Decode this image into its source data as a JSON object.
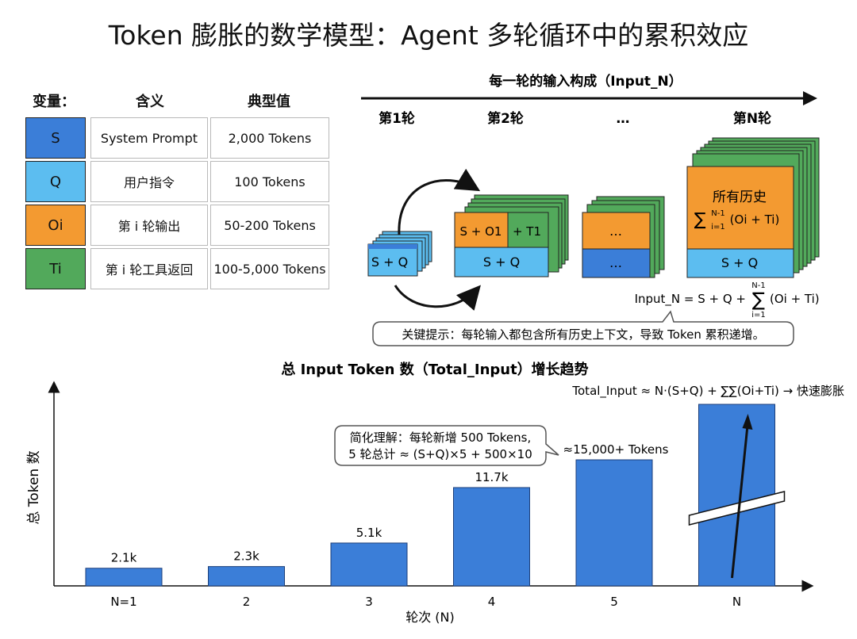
{
  "title": "Token 膨胀的数学模型：Agent 多轮循环中的累积效应",
  "table": {
    "headers": [
      "变量：",
      "含义",
      "典型值"
    ],
    "rows": [
      {
        "var": "S",
        "meaning": "System Prompt",
        "value": "2,000 Tokens",
        "color": "#3b7ed8"
      },
      {
        "var": "Q",
        "meaning": "用户指令",
        "value": "100 Tokens",
        "color": "#5cbdf0"
      },
      {
        "var": "Oi",
        "meaning": "第 i 轮输出",
        "value": "50-200 Tokens",
        "color": "#f39a31"
      },
      {
        "var": "Ti",
        "meaning": "第 i 轮工具返回",
        "value": "100-5,000 Tokens",
        "color": "#52a95b"
      }
    ]
  },
  "input_diagram": {
    "heading": "每一轮的输入构成（Input_N）",
    "rounds": [
      "第1轮",
      "第2轮",
      "…",
      "第N轮"
    ],
    "r1_label": "S + Q",
    "r2_top_left": "S + O1",
    "r2_top_right": "+ T1",
    "r2_bottom": "S + Q",
    "r3_top": "…",
    "r3_bottom": "…",
    "rn_title": "所有历史",
    "rn_sum_sup": "N-1",
    "rn_sum_sub": "i=1",
    "rn_sum_term": "(Oi + Ti)",
    "rn_bottom": "S + Q",
    "formula_left": "Input_N = S + Q +",
    "formula_sup": "N-1",
    "formula_sub": "i=1",
    "formula_term": "(Oi + Ti)",
    "hint": "关键提示：每轮输入都包含所有历史上下文，导致 Token 累积递增。"
  },
  "growth_chart": {
    "title": "总 Input Token 数（Total_Input）增长趋势",
    "y_label": "总 Token 数",
    "x_label": "轮次 (N)",
    "formula": "Total_Input ≈ N·(S+Q) + ∑∑(Oi+Ti) → 快速膨胀",
    "note_line1": "简化理解：每轮新增 500 Tokens,",
    "note_line2": "5 轮总计 ≈ (S+Q)×5 + 500×10"
  },
  "chart_data": {
    "type": "bar",
    "title": "总 Input Token 数（Total_Input）增长趋势",
    "xlabel": "轮次 (N)",
    "ylabel": "总 Token 数",
    "categories": [
      "N=1",
      "2",
      "3",
      "4",
      "5",
      "N"
    ],
    "values": [
      2100,
      2300,
      5100,
      11700,
      15000,
      null
    ],
    "labels": [
      "2.1k",
      "2.3k",
      "5.1k",
      "11.7k",
      "≈15,000+ Tokens",
      ""
    ],
    "axis_break_on_last": true,
    "bar_color": "#3b7ed8"
  }
}
